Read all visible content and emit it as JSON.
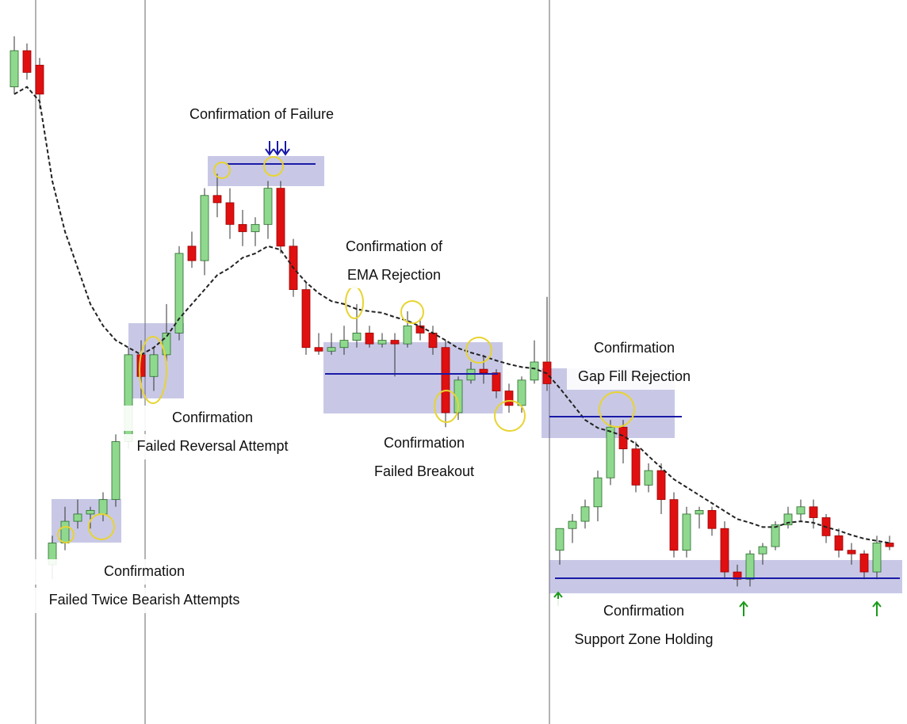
{
  "chart_data": {
    "type": "candlestick",
    "ylim": [
      0,
      100
    ],
    "up_color": "#8fd98f",
    "down_color": "#e01010",
    "ema_color": "#222222",
    "candles": [
      [
        88,
        95,
        87,
        93
      ],
      [
        93,
        94,
        89,
        90
      ],
      [
        91,
        92,
        85,
        87
      ],
      [
        22,
        26,
        20,
        25
      ],
      [
        25,
        30,
        24,
        28
      ],
      [
        28,
        31,
        27,
        29
      ],
      [
        29,
        30,
        27,
        29.5
      ],
      [
        29,
        32,
        28,
        31
      ],
      [
        31,
        40,
        30,
        39
      ],
      [
        39,
        52,
        38,
        51
      ],
      [
        51,
        53,
        45,
        48
      ],
      [
        48,
        52,
        46,
        51
      ],
      [
        51,
        58,
        49,
        54
      ],
      [
        54,
        66,
        53,
        65
      ],
      [
        66,
        68,
        63,
        64
      ],
      [
        64,
        74,
        62,
        73
      ],
      [
        73,
        76,
        70,
        72
      ],
      [
        72,
        74,
        67,
        69
      ],
      [
        69,
        71,
        66,
        68
      ],
      [
        68,
        70,
        66,
        69
      ],
      [
        69,
        75,
        67,
        74
      ],
      [
        74,
        75,
        65,
        66
      ],
      [
        66,
        67,
        59,
        60
      ],
      [
        60,
        61,
        51,
        52
      ],
      [
        52,
        54,
        51,
        51.5
      ],
      [
        51.5,
        54,
        51,
        52
      ],
      [
        52,
        55,
        51,
        53
      ],
      [
        53,
        58,
        52,
        54
      ],
      [
        54,
        55,
        52,
        52.5
      ],
      [
        52.5,
        54,
        52,
        53
      ],
      [
        53,
        54,
        48,
        52.5
      ],
      [
        52.5,
        57,
        52,
        55
      ],
      [
        55,
        56,
        53,
        54
      ],
      [
        54,
        55,
        51,
        52
      ],
      [
        52,
        53,
        41,
        43
      ],
      [
        43,
        48,
        42,
        47.5
      ],
      [
        47.5,
        50,
        47,
        49
      ],
      [
        49,
        51,
        47,
        48.5
      ],
      [
        48.5,
        49,
        45,
        46
      ],
      [
        46,
        47,
        43,
        44
      ],
      [
        44,
        48,
        43,
        47.5
      ],
      [
        47.5,
        53,
        47,
        50
      ],
      [
        50,
        59,
        46,
        47
      ],
      [
        24,
        27,
        22,
        27
      ],
      [
        27,
        29,
        25,
        28
      ],
      [
        28,
        31,
        27,
        30
      ],
      [
        30,
        35,
        28,
        34
      ],
      [
        34,
        42,
        33,
        41
      ],
      [
        41,
        42,
        36,
        38
      ],
      [
        38,
        39,
        32,
        33
      ],
      [
        33,
        36,
        32,
        35
      ],
      [
        35,
        36,
        29,
        31
      ],
      [
        31,
        32,
        23,
        24
      ],
      [
        24,
        30,
        23,
        29
      ],
      [
        29,
        30,
        27,
        29.5
      ],
      [
        29.5,
        30,
        26,
        27
      ],
      [
        27,
        28,
        20,
        21
      ],
      [
        21,
        22,
        19,
        20
      ],
      [
        20,
        24,
        19,
        23.5
      ],
      [
        23.5,
        25,
        22,
        24.5
      ],
      [
        24.5,
        28,
        24,
        27.5
      ],
      [
        27.5,
        30,
        27,
        29
      ],
      [
        29,
        31,
        28,
        30
      ],
      [
        30,
        31,
        27,
        28.5
      ],
      [
        28.5,
        29,
        25,
        26
      ],
      [
        26,
        27,
        23,
        24
      ],
      [
        24,
        25,
        22,
        23.5
      ],
      [
        23.5,
        24,
        20,
        21
      ],
      [
        21,
        26,
        20,
        25
      ],
      [
        25,
        26,
        24,
        24.5
      ]
    ],
    "ema": [
      87,
      88,
      86,
      75,
      68,
      63,
      58,
      55,
      53,
      52,
      51,
      52,
      53.5,
      56,
      58,
      60,
      62,
      63,
      64.4,
      65,
      66,
      65.5,
      63,
      61,
      59.5,
      58.4,
      58,
      57.3,
      57,
      56.8,
      56.2,
      55.7,
      54.9,
      54,
      53,
      51.9,
      51.3,
      50.8,
      50.2,
      49.7,
      49.3,
      49.1,
      48.4,
      46.4,
      44.2,
      42,
      40.9,
      40.4,
      39.8,
      38.7,
      37,
      35.4,
      33.8,
      32.7,
      31.6,
      30.5,
      29.4,
      28.3,
      27.8,
      27.2,
      27.2,
      27.8,
      28,
      27.8,
      27.2,
      26.7,
      26.1,
      25.6,
      25.3,
      25
    ],
    "annotations": [
      {
        "lines": [
          "Confirmation of Failure"
        ]
      },
      {
        "lines": [
          "Confirmation of",
          "EMA Rejection"
        ]
      },
      {
        "lines": [
          "Confirmation",
          "Gap Fill Rejection"
        ]
      },
      {
        "lines": [
          "Confirmation",
          "Failed Reversal Attempt"
        ]
      },
      {
        "lines": [
          "Confirmation",
          "Failed Breakout"
        ]
      },
      {
        "lines": [
          "Confirmation",
          "Failed Twice Bearish Attempts"
        ]
      },
      {
        "lines": [
          "Confirmation",
          "Support Zone Holding"
        ]
      }
    ]
  }
}
